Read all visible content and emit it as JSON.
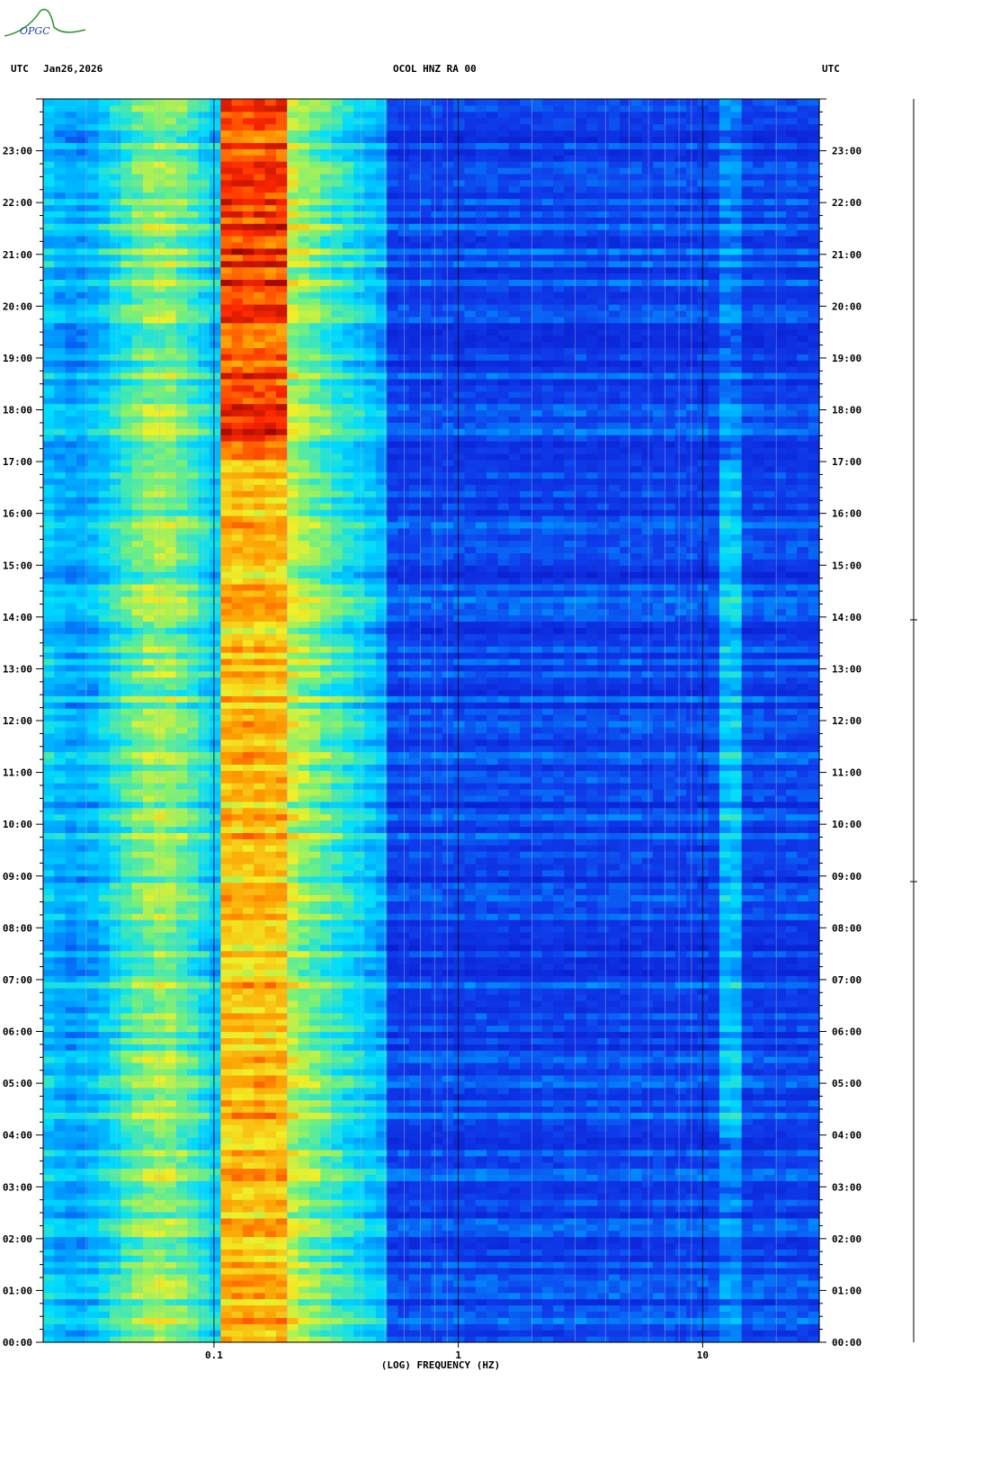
{
  "header": {
    "left_label": "UTC",
    "date": "Jan26,2026",
    "station": "OCOL HNZ RA 00",
    "right_label": "UTC"
  },
  "logo_text": "OPGC",
  "colors": {
    "low": "#0a1fe0",
    "mid_low": "#00c8ff",
    "mid": "#f0f020",
    "high": "#ff3a00",
    "peak": "#8b0000"
  },
  "chart_data": {
    "type": "heatmap",
    "title": "OCOL HNZ RA 00",
    "xlabel": "(LOG) FREQUENCY (HZ)",
    "ylabel": "UTC",
    "x_scale": "log",
    "xlim": [
      0.02,
      30
    ],
    "x_ticks": [
      {
        "value": 0.1,
        "label": "0.1"
      },
      {
        "value": 1,
        "label": "1"
      },
      {
        "value": 10,
        "label": "10"
      }
    ],
    "ylim_hours": [
      0,
      24
    ],
    "y_ticks": [
      "00:00",
      "01:00",
      "02:00",
      "03:00",
      "04:00",
      "05:00",
      "06:00",
      "07:00",
      "08:00",
      "09:00",
      "10:00",
      "11:00",
      "12:00",
      "13:00",
      "14:00",
      "15:00",
      "16:00",
      "17:00",
      "18:00",
      "19:00",
      "20:00",
      "21:00",
      "22:00",
      "23:00"
    ],
    "grid": true,
    "features": [
      {
        "description": "microseism peak",
        "freq_range_hz": [
          0.12,
          0.18
        ],
        "strongest_hours": [
          17,
          24
        ]
      },
      {
        "description": "anthropogenic band",
        "freq_range_hz": [
          12,
          15
        ],
        "strongest_hours": [
          5,
          17
        ]
      }
    ]
  }
}
